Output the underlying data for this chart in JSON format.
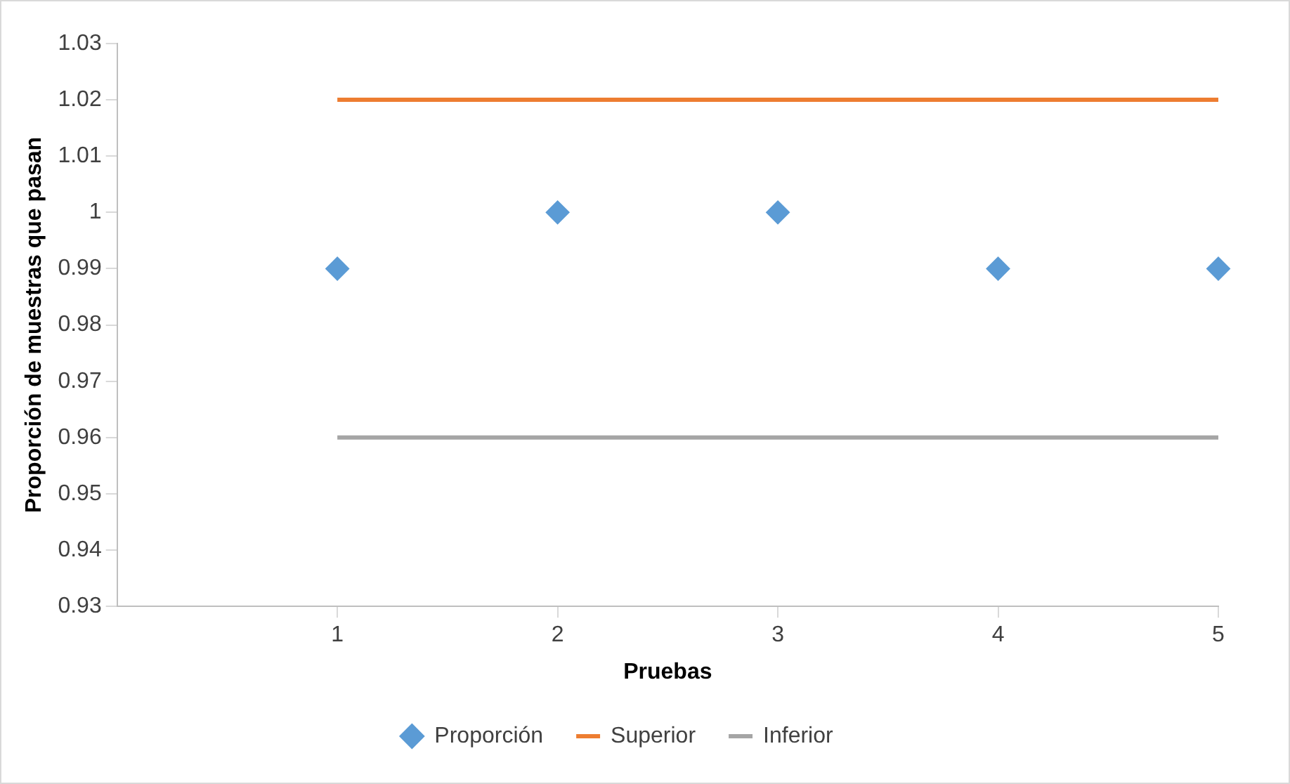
{
  "chart_data": {
    "type": "scatter",
    "xlabel": "Pruebas",
    "ylabel": "Proporción de muestras que pasan",
    "x": [
      1,
      2,
      3,
      4,
      5
    ],
    "series": [
      {
        "name": "Proporción",
        "type": "scatter",
        "marker": "diamond",
        "color": "#5b9bd5",
        "values": [
          0.99,
          1,
          1,
          0.99,
          0.99
        ]
      },
      {
        "name": "Superior",
        "type": "line",
        "marker": "none",
        "color": "#ed7d31",
        "values": [
          1.02,
          1.02,
          1.02,
          1.02,
          1.02
        ]
      },
      {
        "name": "Inferior",
        "type": "line",
        "marker": "none",
        "color": "#a5a5a5",
        "values": [
          0.96,
          0.96,
          0.96,
          0.96,
          0.96
        ]
      }
    ],
    "xlim": [
      0,
      5
    ],
    "xticks": [
      1,
      2,
      3,
      4,
      5
    ],
    "ylim": [
      0.93,
      1.03
    ],
    "yticks": [
      0.93,
      0.94,
      0.95,
      0.96,
      0.97,
      0.98,
      0.99,
      1,
      1.01,
      1.02,
      1.03
    ],
    "grid": false,
    "legend": "bottom"
  }
}
